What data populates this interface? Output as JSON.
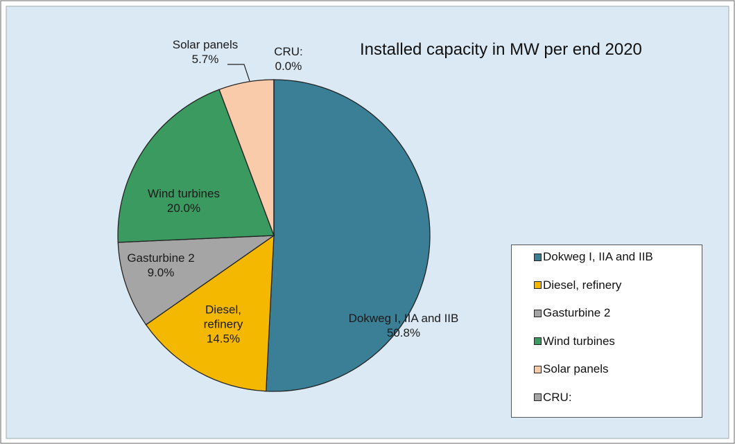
{
  "chart_data": {
    "type": "pie",
    "title": "Installed capacity in MW per end 2020",
    "categories": [
      "Dokweg I, IIA and IIB",
      "Diesel, refinery",
      "Gasturbine 2",
      "Wind turbines",
      "Solar panels",
      "CRU:"
    ],
    "values": [
      50.8,
      14.5,
      9.0,
      20.0,
      5.7,
      0.0
    ],
    "value_labels": [
      "50.8%",
      "14.5%",
      "9.0%",
      "20.0%",
      "5.7%",
      "0.0%"
    ],
    "colors": [
      "#3a7f96",
      "#f5b800",
      "#a5a5a5",
      "#3b9a5f",
      "#f9cbaa",
      "#a5a5a5"
    ],
    "legend": "right"
  }
}
